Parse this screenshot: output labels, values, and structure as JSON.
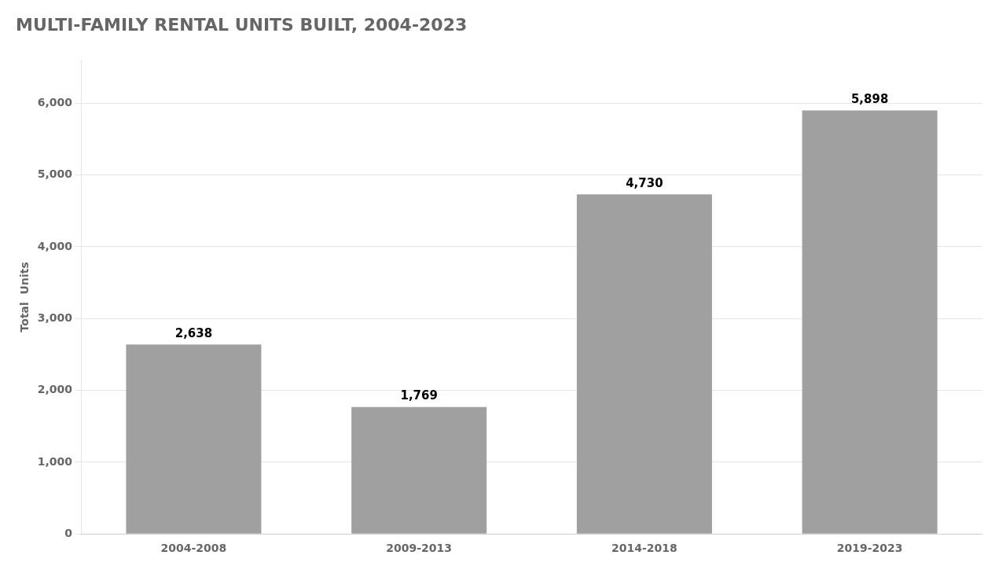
{
  "chart_data": {
    "type": "bar",
    "title": "MULTI-FAMILY RENTAL UNITS BUILT, 2004-2023",
    "y_label": "Total  Units",
    "categories": [
      "2004-2008",
      "2009-2013",
      "2014-2018",
      "2019-2023"
    ],
    "values": [
      2638,
      1769,
      4730,
      5898
    ],
    "value_labels": [
      "2,638",
      "1,769",
      "4,730",
      "5,898"
    ],
    "data_labels": true,
    "color": "#a0a0a0",
    "ylim": [
      0,
      6600
    ],
    "yticks": [
      {
        "value": 0,
        "label": "0"
      },
      {
        "value": 1000,
        "label": "1,000"
      },
      {
        "value": 2000,
        "label": "2,000"
      },
      {
        "value": 3000,
        "label": "3,000"
      },
      {
        "value": 4000,
        "label": "4,000"
      },
      {
        "value": 5000,
        "label": "5,000"
      },
      {
        "value": 6000,
        "label": "6,000"
      }
    ],
    "grid": true
  }
}
